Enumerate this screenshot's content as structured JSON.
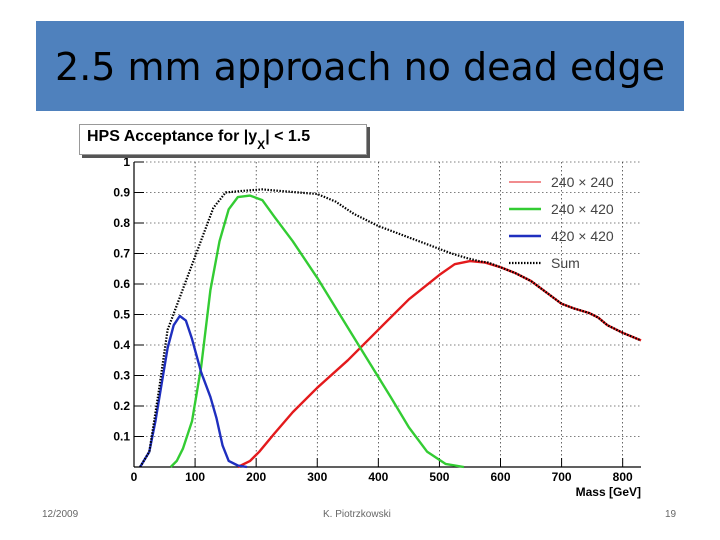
{
  "slide": {
    "title": "2.5 mm approach no dead edge",
    "date": "12/2009",
    "author": "K. Piotrzkowski",
    "page_number": "19"
  },
  "colors": {
    "title_bar": "#4f81bd",
    "series_240x240": "#e31a1c",
    "series_240x420": "#33cc33",
    "series_420x420": "#1f2fbf",
    "series_sum": "#000000"
  },
  "chart_data": {
    "type": "line",
    "title_main": "HPS Acceptance for |y",
    "title_sub": "X",
    "title_tail": "| < 1.5",
    "xlabel": "Mass [GeV]",
    "ylabel": "",
    "xlim": [
      0,
      830
    ],
    "ylim": [
      0,
      1
    ],
    "xticks": [
      0,
      100,
      200,
      300,
      400,
      500,
      600,
      700,
      800
    ],
    "xtick_labels": [
      "0",
      "100",
      "200",
      "300",
      "400",
      "500",
      "600",
      "700",
      "800"
    ],
    "yticks": [
      0.1,
      0.2,
      0.3,
      0.4,
      0.5,
      0.6,
      0.7,
      0.8,
      0.9,
      1
    ],
    "ytick_labels": [
      "0.1",
      "0.2",
      "0.3",
      "0.4",
      "0.5",
      "0.6",
      "0.7",
      "0.8",
      "0.9",
      "1"
    ],
    "grid": true,
    "legend": "top-right",
    "series": [
      {
        "name": "240 × 240",
        "color": "#e31a1c",
        "style": "solid",
        "points": [
          [
            170,
            0
          ],
          [
            190,
            0.02
          ],
          [
            205,
            0.05
          ],
          [
            230,
            0.11
          ],
          [
            260,
            0.18
          ],
          [
            300,
            0.26
          ],
          [
            350,
            0.35
          ],
          [
            400,
            0.45
          ],
          [
            450,
            0.55
          ],
          [
            500,
            0.63
          ],
          [
            525,
            0.665
          ],
          [
            550,
            0.675
          ],
          [
            575,
            0.67
          ],
          [
            600,
            0.655
          ],
          [
            625,
            0.635
          ],
          [
            650,
            0.61
          ],
          [
            680,
            0.565
          ],
          [
            700,
            0.535
          ],
          [
            720,
            0.52
          ],
          [
            745,
            0.505
          ],
          [
            760,
            0.49
          ],
          [
            775,
            0.465
          ],
          [
            800,
            0.44
          ],
          [
            830,
            0.415
          ]
        ]
      },
      {
        "name": "240 × 420",
        "color": "#33cc33",
        "style": "solid",
        "points": [
          [
            60,
            0
          ],
          [
            70,
            0.02
          ],
          [
            80,
            0.06
          ],
          [
            95,
            0.15
          ],
          [
            110,
            0.33
          ],
          [
            125,
            0.58
          ],
          [
            140,
            0.74
          ],
          [
            155,
            0.845
          ],
          [
            170,
            0.885
          ],
          [
            190,
            0.89
          ],
          [
            210,
            0.875
          ],
          [
            230,
            0.82
          ],
          [
            260,
            0.74
          ],
          [
            300,
            0.62
          ],
          [
            340,
            0.49
          ],
          [
            380,
            0.36
          ],
          [
            420,
            0.23
          ],
          [
            450,
            0.13
          ],
          [
            480,
            0.05
          ],
          [
            510,
            0.01
          ],
          [
            540,
            0
          ]
        ]
      },
      {
        "name": "420 × 420",
        "color": "#1f2fbf",
        "style": "solid",
        "points": [
          [
            10,
            0
          ],
          [
            25,
            0.05
          ],
          [
            35,
            0.15
          ],
          [
            45,
            0.27
          ],
          [
            55,
            0.39
          ],
          [
            65,
            0.465
          ],
          [
            75,
            0.495
          ],
          [
            85,
            0.48
          ],
          [
            95,
            0.42
          ],
          [
            110,
            0.31
          ],
          [
            125,
            0.23
          ],
          [
            135,
            0.16
          ],
          [
            145,
            0.07
          ],
          [
            155,
            0.02
          ],
          [
            170,
            0.005
          ],
          [
            185,
            0
          ]
        ]
      },
      {
        "name": "Sum",
        "color": "#000000",
        "style": "dotted",
        "points": [
          [
            10,
            0
          ],
          [
            25,
            0.05
          ],
          [
            40,
            0.24
          ],
          [
            55,
            0.45
          ],
          [
            70,
            0.53
          ],
          [
            85,
            0.61
          ],
          [
            100,
            0.69
          ],
          [
            115,
            0.77
          ],
          [
            130,
            0.85
          ],
          [
            150,
            0.9
          ],
          [
            175,
            0.905
          ],
          [
            210,
            0.91
          ],
          [
            240,
            0.905
          ],
          [
            270,
            0.9
          ],
          [
            300,
            0.895
          ],
          [
            330,
            0.87
          ],
          [
            360,
            0.83
          ],
          [
            400,
            0.79
          ],
          [
            440,
            0.76
          ],
          [
            480,
            0.73
          ],
          [
            520,
            0.7
          ],
          [
            545,
            0.685
          ],
          [
            565,
            0.675
          ],
          [
            580,
            0.67
          ],
          [
            600,
            0.655
          ],
          [
            625,
            0.635
          ],
          [
            650,
            0.61
          ],
          [
            680,
            0.565
          ],
          [
            700,
            0.535
          ],
          [
            720,
            0.52
          ],
          [
            745,
            0.505
          ],
          [
            760,
            0.49
          ],
          [
            775,
            0.465
          ],
          [
            800,
            0.44
          ],
          [
            830,
            0.415
          ]
        ]
      }
    ]
  }
}
